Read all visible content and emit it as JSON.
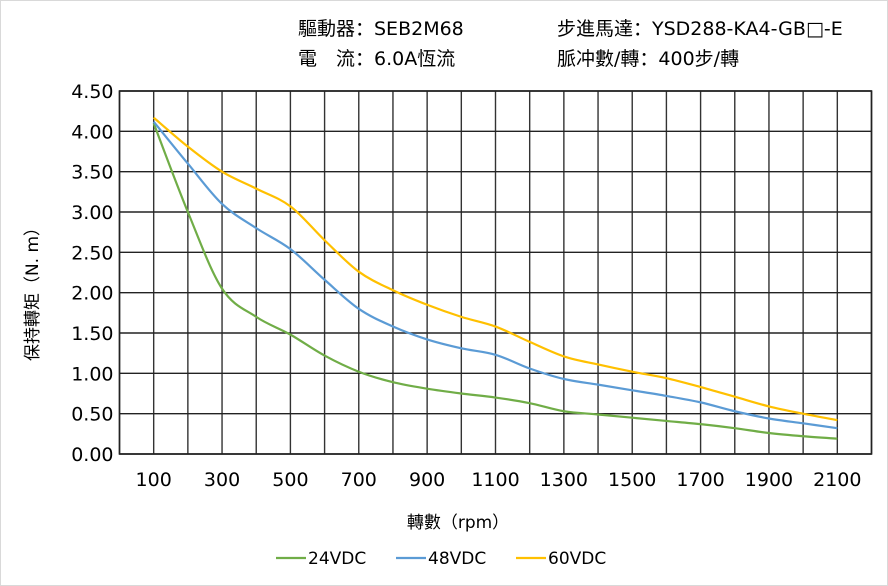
{
  "header": {
    "driver_label": "驅動器：SEB2M68",
    "current_label": "電　流：6.0A恆流",
    "motor_label": "步進馬達：YSD288-KA4-GB□-E",
    "pulses_label": "脈冲數/轉：400步/轉"
  },
  "chart_data": {
    "type": "line",
    "title": "",
    "xlabel": "轉數（rpm）",
    "ylabel": "保持轉矩（N. m）",
    "xlim": [
      0,
      2200
    ],
    "ylim": [
      0,
      4.5
    ],
    "x_ticks": [
      "100",
      "300",
      "500",
      "700",
      "900",
      "1100",
      "1300",
      "1500",
      "1700",
      "1900",
      "2100"
    ],
    "y_ticks": [
      "0.00",
      "0.50",
      "1.00",
      "1.50",
      "2.00",
      "2.50",
      "3.00",
      "3.50",
      "4.00",
      "4.50"
    ],
    "grid": true,
    "legend_position": "bottom",
    "x": [
      100,
      200,
      300,
      400,
      500,
      600,
      700,
      800,
      900,
      1000,
      1100,
      1200,
      1300,
      1400,
      1500,
      1600,
      1700,
      1800,
      1900,
      2000,
      2100
    ],
    "series": [
      {
        "name": "24VDC",
        "color": "#70AD47",
        "values": [
          4.1,
          3.0,
          2.05,
          1.7,
          1.48,
          1.22,
          1.02,
          0.89,
          0.81,
          0.75,
          0.7,
          0.63,
          0.53,
          0.49,
          0.45,
          0.41,
          0.37,
          0.32,
          0.26,
          0.22,
          0.19
        ]
      },
      {
        "name": "48VDC",
        "color": "#5B9BD5",
        "values": [
          4.12,
          3.6,
          3.1,
          2.8,
          2.54,
          2.16,
          1.8,
          1.58,
          1.42,
          1.31,
          1.23,
          1.06,
          0.93,
          0.86,
          0.79,
          0.72,
          0.64,
          0.53,
          0.44,
          0.38,
          0.32
        ]
      },
      {
        "name": "60VDC",
        "color": "#FFC000",
        "values": [
          4.17,
          3.81,
          3.5,
          3.29,
          3.07,
          2.65,
          2.26,
          2.03,
          1.85,
          1.7,
          1.58,
          1.39,
          1.21,
          1.11,
          1.02,
          0.94,
          0.83,
          0.71,
          0.59,
          0.5,
          0.42
        ]
      }
    ]
  }
}
